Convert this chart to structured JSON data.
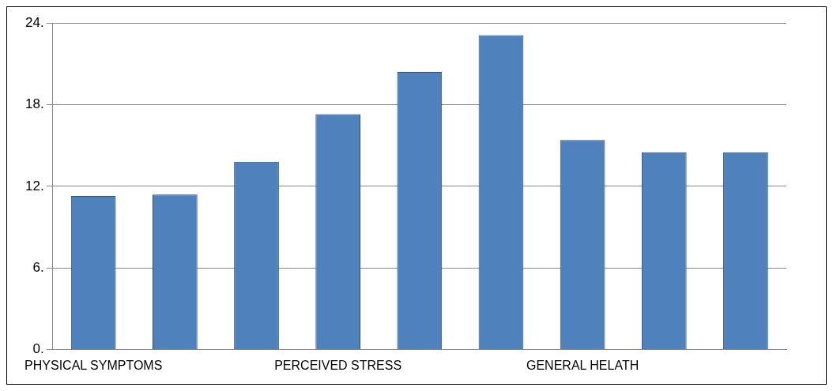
{
  "chart_data": {
    "type": "bar",
    "categories": [
      "PHYSICAL SYMPTOMS",
      null,
      null,
      "PERCEIVED STRESS",
      null,
      null,
      "GENERAL HELATH",
      null,
      null
    ],
    "values": [
      11.3,
      11.4,
      13.8,
      17.3,
      20.4,
      23.1,
      15.4,
      14.5,
      14.5
    ],
    "color": "#4f81bd",
    "ylim": [
      0,
      24
    ],
    "yticks": [
      {
        "value": 0,
        "label": "0."
      },
      {
        "value": 6,
        "label": "6."
      },
      {
        "value": 12,
        "label": "12."
      },
      {
        "value": 18,
        "label": "18."
      },
      {
        "value": 24,
        "label": "24."
      }
    ],
    "grid": "y",
    "legend": false
  }
}
